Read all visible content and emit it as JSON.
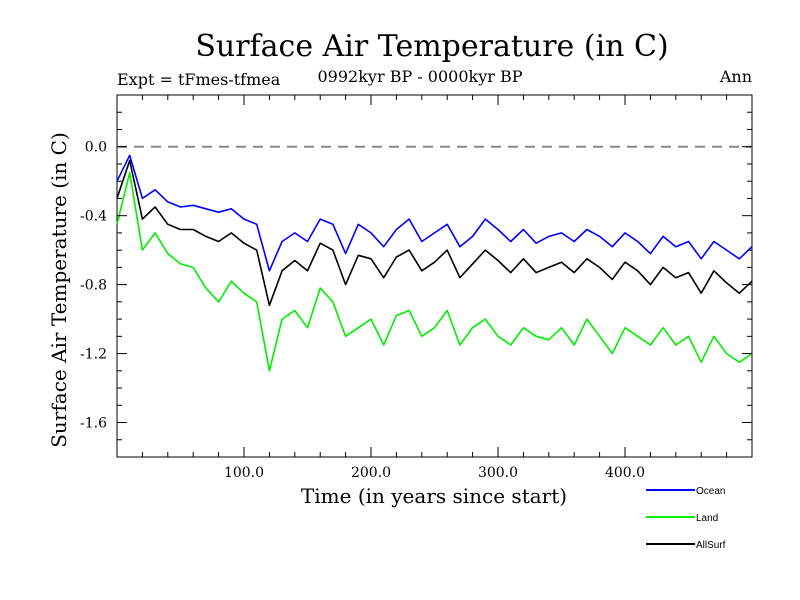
{
  "chart_data": {
    "type": "line",
    "title": "Surface Air Temperature (in C)",
    "subtitle_left": "Expt = tFmes-tfmea",
    "subtitle_center": "0992kyr BP - 0000kyr BP",
    "subtitle_right": "Ann",
    "xlabel": "Time (in years since start)",
    "ylabel": "Surface Air Temperature (in C)",
    "xlim": [
      0,
      500
    ],
    "ylim": [
      -1.8,
      0.3
    ],
    "x_ticks": [
      100,
      200,
      300,
      400
    ],
    "x_tick_labels": [
      "100.0",
      "200.0",
      "300.0",
      "400.0"
    ],
    "y_ticks": [
      0.0,
      -0.4,
      -0.8,
      -1.2,
      -1.6
    ],
    "y_tick_labels": [
      "0.0",
      "-0.4",
      "-0.8",
      "-1.2",
      "-1.6"
    ],
    "reference_line": 0.0,
    "x": [
      0,
      10,
      20,
      30,
      40,
      50,
      60,
      70,
      80,
      90,
      100,
      110,
      120,
      130,
      140,
      150,
      160,
      170,
      180,
      190,
      200,
      210,
      220,
      230,
      240,
      250,
      260,
      270,
      280,
      290,
      300,
      310,
      320,
      330,
      340,
      350,
      360,
      370,
      380,
      390,
      400,
      410,
      420,
      430,
      440,
      450,
      460,
      470,
      480,
      490,
      500
    ],
    "series": [
      {
        "name": "Ocean",
        "color": "#0000ff",
        "values": [
          -0.2,
          -0.05,
          -0.3,
          -0.25,
          -0.32,
          -0.35,
          -0.34,
          -0.36,
          -0.38,
          -0.36,
          -0.42,
          -0.45,
          -0.72,
          -0.55,
          -0.5,
          -0.55,
          -0.42,
          -0.45,
          -0.62,
          -0.45,
          -0.5,
          -0.58,
          -0.48,
          -0.42,
          -0.55,
          -0.5,
          -0.45,
          -0.58,
          -0.52,
          -0.42,
          -0.48,
          -0.55,
          -0.48,
          -0.56,
          -0.52,
          -0.5,
          -0.55,
          -0.48,
          -0.52,
          -0.58,
          -0.5,
          -0.55,
          -0.62,
          -0.52,
          -0.58,
          -0.55,
          -0.65,
          -0.55,
          -0.6,
          -0.65,
          -0.58
        ]
      },
      {
        "name": "Land",
        "color": "#00ee00",
        "values": [
          -0.45,
          -0.15,
          -0.6,
          -0.5,
          -0.62,
          -0.68,
          -0.7,
          -0.82,
          -0.9,
          -0.78,
          -0.85,
          -0.9,
          -1.3,
          -1.0,
          -0.95,
          -1.05,
          -0.82,
          -0.9,
          -1.1,
          -1.05,
          -1.0,
          -1.15,
          -0.98,
          -0.95,
          -1.1,
          -1.05,
          -0.95,
          -1.15,
          -1.05,
          -1.0,
          -1.1,
          -1.15,
          -1.05,
          -1.1,
          -1.12,
          -1.05,
          -1.15,
          -1.0,
          -1.1,
          -1.2,
          -1.05,
          -1.1,
          -1.15,
          -1.05,
          -1.15,
          -1.1,
          -1.25,
          -1.1,
          -1.2,
          -1.25,
          -1.2
        ]
      },
      {
        "name": "AllSurf",
        "color": "#000000",
        "values": [
          -0.3,
          -0.08,
          -0.42,
          -0.35,
          -0.45,
          -0.48,
          -0.48,
          -0.52,
          -0.55,
          -0.5,
          -0.56,
          -0.6,
          -0.92,
          -0.72,
          -0.66,
          -0.72,
          -0.56,
          -0.6,
          -0.8,
          -0.63,
          -0.65,
          -0.76,
          -0.64,
          -0.6,
          -0.72,
          -0.67,
          -0.6,
          -0.76,
          -0.68,
          -0.6,
          -0.66,
          -0.73,
          -0.65,
          -0.73,
          -0.7,
          -0.67,
          -0.73,
          -0.65,
          -0.7,
          -0.77,
          -0.67,
          -0.72,
          -0.8,
          -0.7,
          -0.76,
          -0.73,
          -0.85,
          -0.72,
          -0.79,
          -0.85,
          -0.78
        ]
      }
    ]
  }
}
